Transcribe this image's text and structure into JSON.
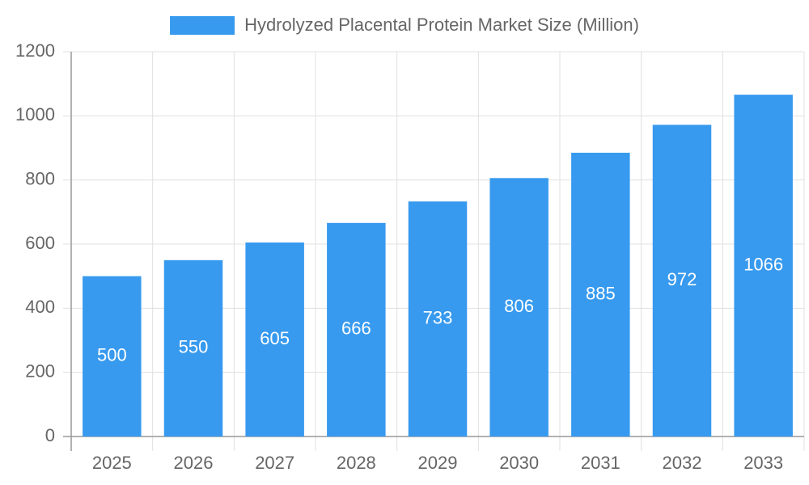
{
  "chart_data": {
    "type": "bar",
    "categories": [
      "2025",
      "2026",
      "2027",
      "2028",
      "2029",
      "2030",
      "2031",
      "2032",
      "2033"
    ],
    "series": [
      {
        "name": "Hydrolyzed Placental Protein Market Size (Million)",
        "color": "#379aef",
        "values": [
          500,
          550,
          605,
          666,
          733,
          806,
          885,
          972,
          1066
        ]
      }
    ],
    "ylim": [
      0,
      1200
    ],
    "yticks": [
      0,
      200,
      400,
      600,
      800,
      1000,
      1200
    ],
    "grid": true,
    "legend": "top"
  }
}
